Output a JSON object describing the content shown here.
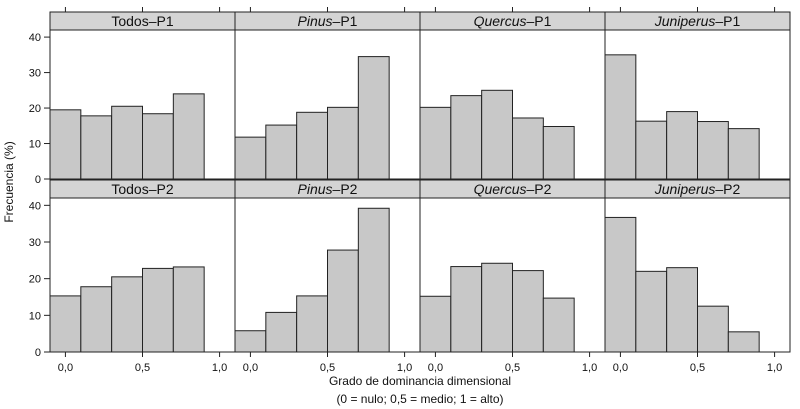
{
  "chart_data": {
    "type": "bar",
    "layout": "facet-grid",
    "ylabel": "Frecuencia (%)",
    "xlabel": "Grado de dominancia dimensional",
    "xlabel_note": "(0 = nulo; 0,5 = medio; 1 = alto)",
    "xlim": [
      -0.1,
      1.1
    ],
    "ylim": [
      0,
      42
    ],
    "x_ticks": [
      0.0,
      0.5,
      1.0
    ],
    "x_tick_labels": [
      "0,0",
      "0,5",
      "1,0"
    ],
    "y_ticks": [
      0,
      10,
      20,
      30,
      40
    ],
    "y_tick_labels": [
      "0",
      "10",
      "20",
      "30",
      "40"
    ],
    "bin_edges": [
      -0.1,
      0.1,
      0.3,
      0.5,
      0.7,
      0.9
    ],
    "bin_width": 0.2,
    "colors": {
      "bar_fill": "#c8c8c8",
      "strip_fill": "#d4d4d4",
      "outline": "#222222"
    },
    "panels": [
      {
        "label_prefix": "Todos",
        "label_suffix": "–P1",
        "italic": false,
        "values": [
          19.5,
          17.8,
          20.5,
          18.4,
          24.0
        ]
      },
      {
        "label_prefix": "Pinus",
        "label_suffix": "–P1",
        "italic": true,
        "values": [
          11.8,
          15.2,
          18.8,
          20.2,
          34.5
        ]
      },
      {
        "label_prefix": "Quercus",
        "label_suffix": "–P1",
        "italic": true,
        "values": [
          20.2,
          23.5,
          25.0,
          17.2,
          14.8
        ]
      },
      {
        "label_prefix": "Juniperus",
        "label_suffix": "–P1",
        "italic": true,
        "values": [
          35.0,
          16.3,
          19.0,
          16.2,
          14.2
        ]
      },
      {
        "label_prefix": "Todos",
        "label_suffix": "–P2",
        "italic": false,
        "values": [
          15.3,
          17.8,
          20.5,
          22.8,
          23.2
        ]
      },
      {
        "label_prefix": "Pinus",
        "label_suffix": "–P2",
        "italic": true,
        "values": [
          5.8,
          10.8,
          15.3,
          27.8,
          39.2
        ]
      },
      {
        "label_prefix": "Quercus",
        "label_suffix": "–P2",
        "italic": true,
        "values": [
          15.2,
          23.3,
          24.2,
          22.2,
          14.7
        ]
      },
      {
        "label_prefix": "Juniperus",
        "label_suffix": "–P2",
        "italic": true,
        "values": [
          36.7,
          22.0,
          23.0,
          12.5,
          5.5
        ]
      }
    ]
  }
}
